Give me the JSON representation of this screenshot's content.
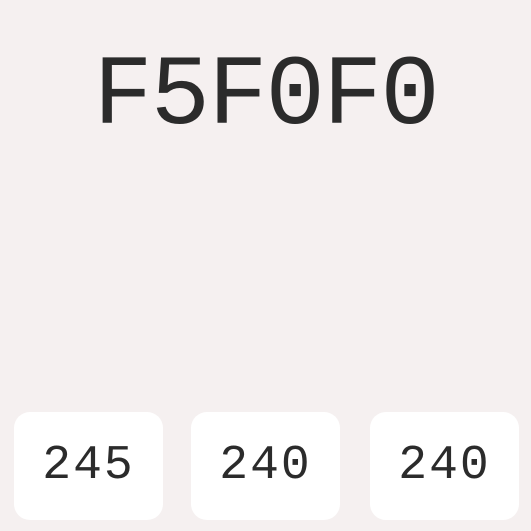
{
  "color": {
    "hex": "F5F0F0",
    "swatch_hex": "#F5F0F0",
    "text_color": "#2B2B2B",
    "chip_color": "#FFFFFF"
  },
  "channels": {
    "r": "245",
    "g": "240",
    "b": "240"
  }
}
